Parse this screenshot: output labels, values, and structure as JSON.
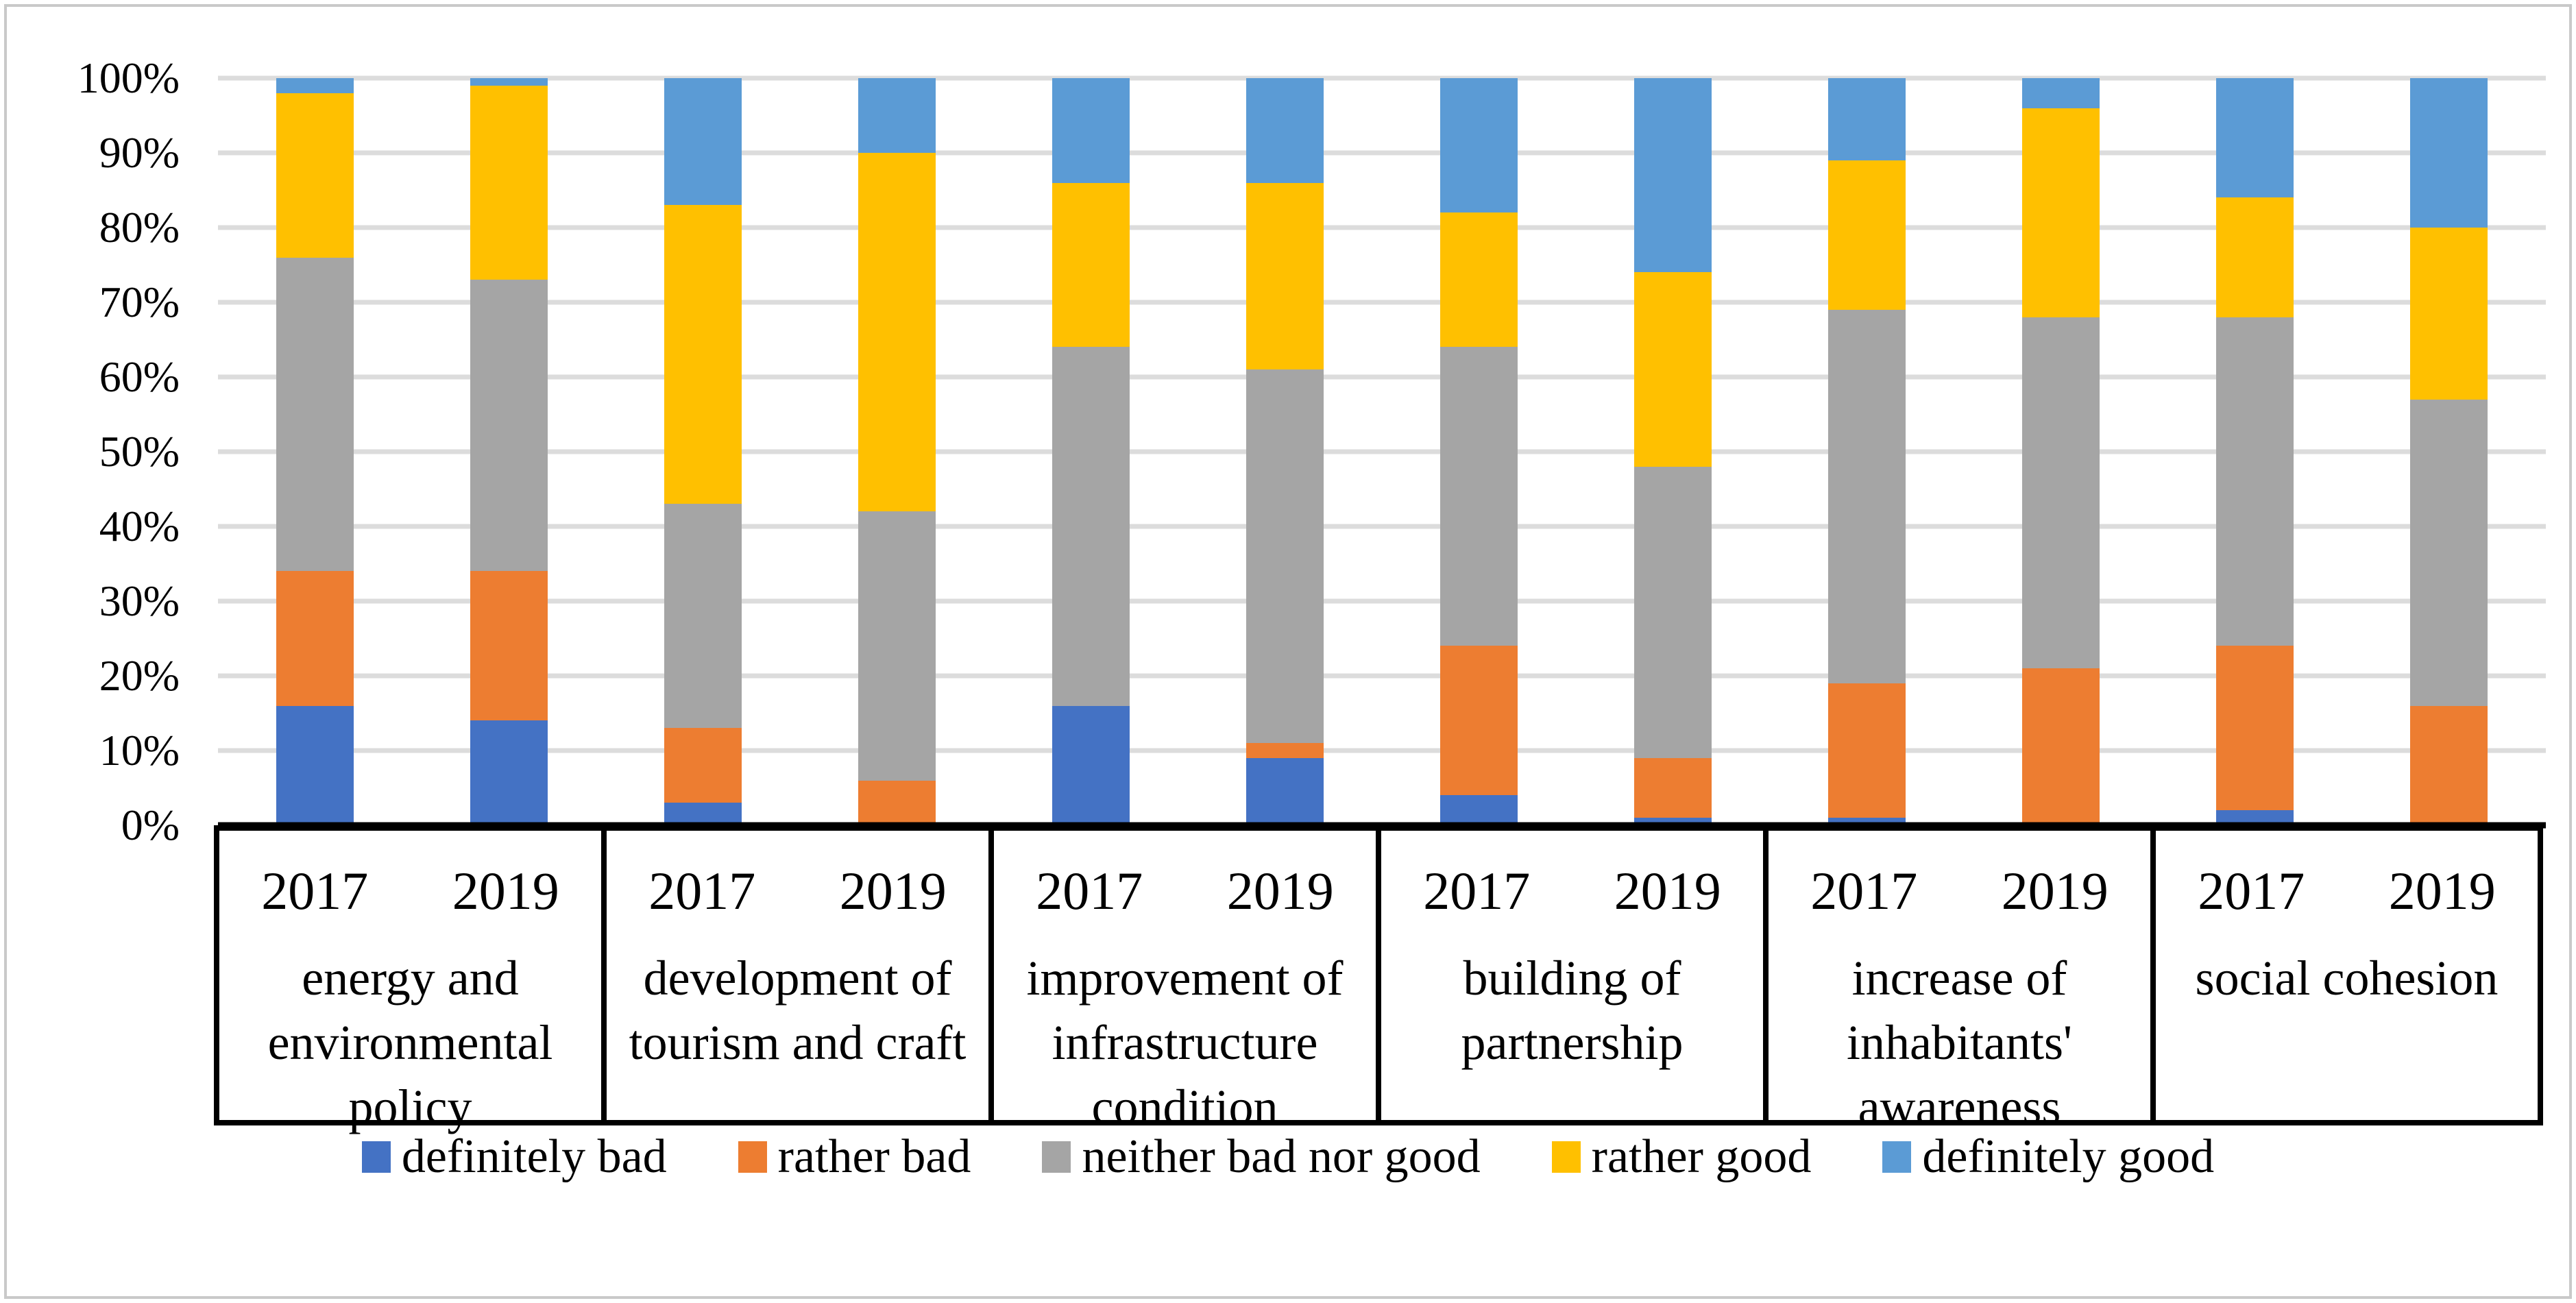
{
  "chart_data": {
    "type": "bar",
    "variant": "stacked-100-percent-column",
    "title": "",
    "xlabel": "",
    "ylabel": "",
    "categories": [
      "energy and environmental policy",
      "development of tourism and craft",
      "improvement of infrastructure condition",
      "building of partnership",
      "increase of inhabitants' awareness",
      "social cohesion"
    ],
    "group_years": [
      "2017",
      "2019"
    ],
    "series": [
      {
        "name": "definitely bad",
        "color": "#4472C4",
        "values": [
          16,
          14,
          3,
          0,
          16,
          9,
          4,
          1,
          1,
          0,
          2,
          0
        ]
      },
      {
        "name": "rather bad",
        "color": "#ED7D31",
        "values": [
          18,
          20,
          10,
          6,
          0,
          2,
          20,
          8,
          18,
          21,
          22,
          16
        ]
      },
      {
        "name": "neither bad nor good",
        "color": "#A5A5A5",
        "values": [
          42,
          39,
          30,
          36,
          48,
          50,
          40,
          39,
          50,
          47,
          44,
          41
        ]
      },
      {
        "name": "rather good",
        "color": "#FFC000",
        "values": [
          22,
          26,
          40,
          48,
          22,
          25,
          18,
          26,
          20,
          28,
          16,
          23
        ]
      },
      {
        "name": "definitely good",
        "color": "#5B9BD5",
        "values": [
          2,
          1,
          17,
          10,
          14,
          14,
          18,
          26,
          11,
          4,
          16,
          20
        ]
      }
    ],
    "y_axis": {
      "min": 0,
      "max": 100,
      "tick_step": 10,
      "ticks": [
        "0%",
        "10%",
        "20%",
        "30%",
        "40%",
        "50%",
        "60%",
        "70%",
        "80%",
        "90%",
        "100%"
      ],
      "grid": true
    },
    "legend_position": "bottom"
  },
  "colors": {
    "background": "#FFFFFF",
    "gridline": "#DCDCDC",
    "axis_line": "#000000",
    "category_box_border": "#000000",
    "outer_frame": "#C9C9C9",
    "text": "#000000"
  }
}
